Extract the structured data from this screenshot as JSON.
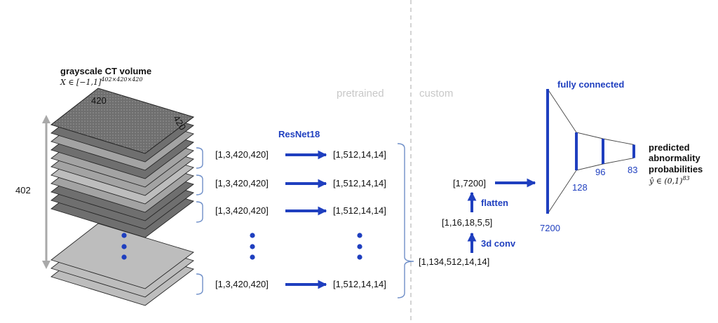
{
  "colors": {
    "accent": "#1f3fbf",
    "bracket": "#6f8fc8",
    "divider": "#d4d4d4",
    "axis_arrow": "#a9a9a9",
    "slice_dark": "#6f6f6f",
    "slice_mid": "#a3a3a3",
    "slice_light": "#bdbdbd"
  },
  "input": {
    "title": "grayscale CT volume",
    "formula": "X ∈ [−1,1]",
    "formula_sup": "402×420×420",
    "width_label": "420",
    "depth_label": "420",
    "height_label": "402"
  },
  "sections": {
    "pretrained": "pretrained",
    "custom": "custom"
  },
  "backbone": {
    "name": "ResNet18",
    "rows": [
      {
        "input_shape": "[1,3,420,420]",
        "output_shape": "[1,512,14,14]"
      },
      {
        "input_shape": "[1,3,420,420]",
        "output_shape": "[1,512,14,14]"
      },
      {
        "input_shape": "[1,3,420,420]",
        "output_shape": "[1,512,14,14]"
      },
      {
        "input_shape": "[1,3,420,420]",
        "output_shape": "[1,512,14,14]"
      }
    ]
  },
  "custom_head": {
    "stacked_shape": "[1,134,512,14,14]",
    "conv_label": "3d conv",
    "conv_shape": "[1,16,18,5,5]",
    "flatten_label": "flatten",
    "flatten_shape": "[1,7200]"
  },
  "fc": {
    "title": "fully connected",
    "layers": [
      7200,
      128,
      96,
      83
    ],
    "layer_labels": [
      "7200",
      "128",
      "96",
      "83"
    ]
  },
  "output": {
    "line1": "predicted",
    "line2": "abnormality",
    "line3": "probabilities",
    "formula": "ŷ ∈ (0,1)",
    "formula_sup": "83"
  }
}
